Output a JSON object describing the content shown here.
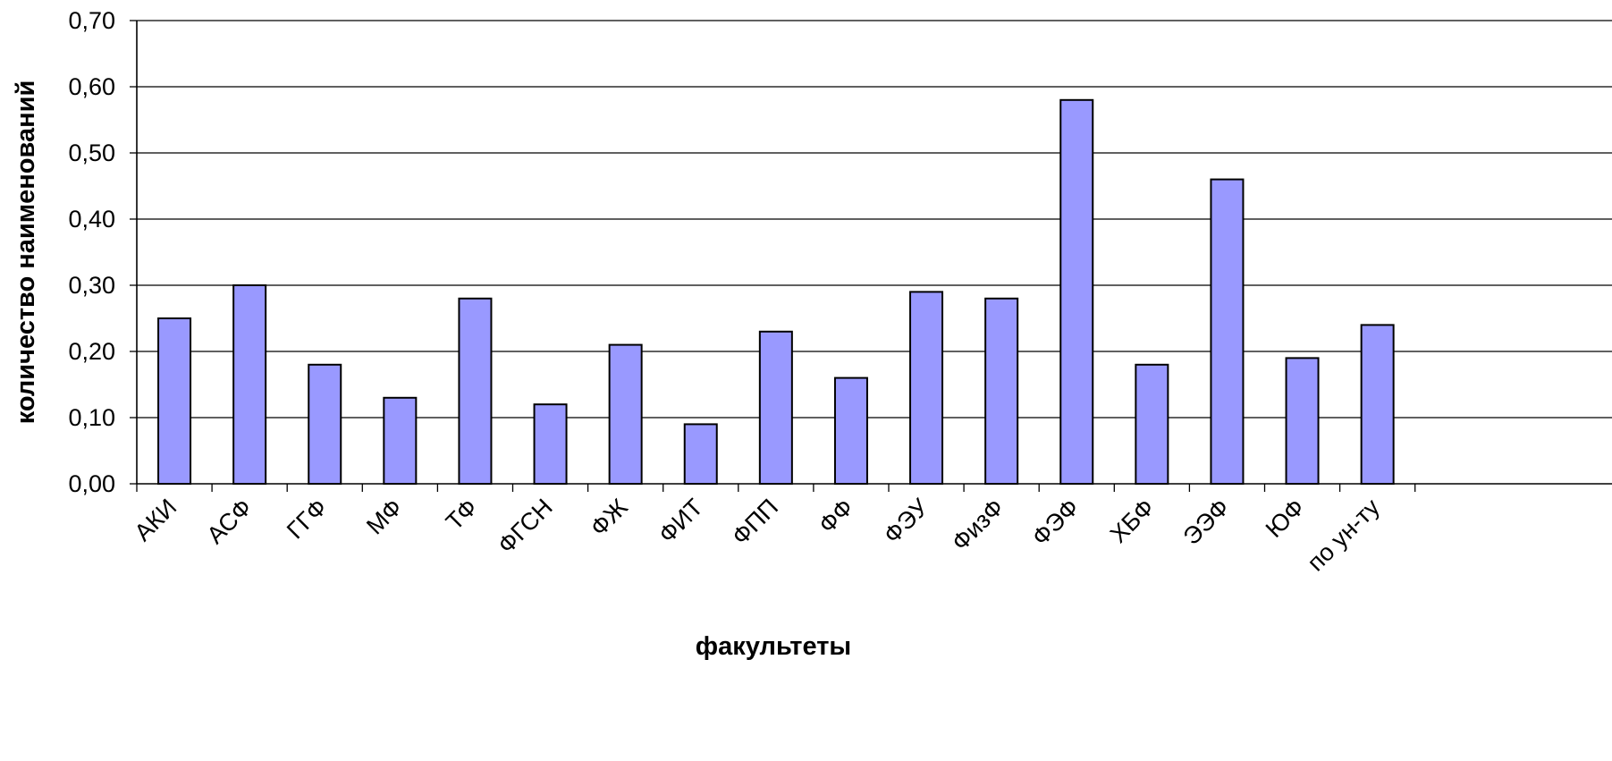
{
  "chart_data": {
    "type": "bar",
    "title": "",
    "xlabel": "факультеты",
    "ylabel": "количество наименований",
    "categories": [
      "АКИ",
      "АСФ",
      "ГГФ",
      "МФ",
      "ТФ",
      "ФГСН",
      "ФЖ",
      "ФИТ",
      "ФПП",
      "ФФ",
      "ФЭУ",
      "ФизФ",
      "ФЭФ",
      "ХБФ",
      "ЭЭФ",
      "ЮФ",
      "по ун-ту"
    ],
    "values": [
      0.25,
      0.3,
      0.18,
      0.13,
      0.28,
      0.12,
      0.21,
      0.09,
      0.23,
      0.16,
      0.29,
      0.28,
      0.58,
      0.18,
      0.46,
      0.19,
      0.24
    ],
    "y_ticks": [
      "0,00",
      "0,10",
      "0,20",
      "0,30",
      "0,40",
      "0,50",
      "0,60",
      "0,70"
    ],
    "ylim": [
      0,
      0.7
    ],
    "grid": true,
    "legend": "none",
    "bar_color": "#9999ff",
    "bar_stroke": "#000000"
  }
}
